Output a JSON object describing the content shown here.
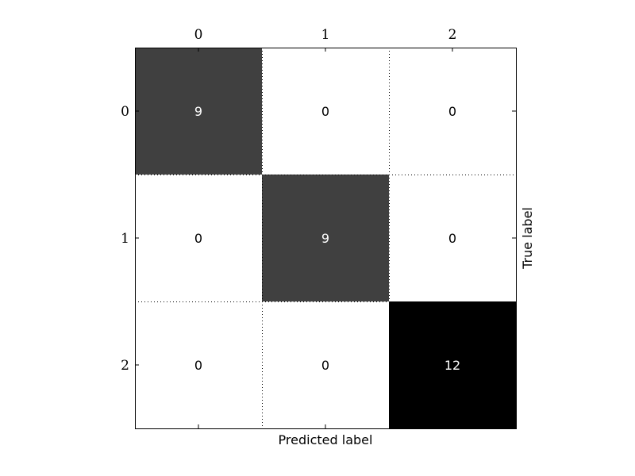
{
  "chart_data": {
    "type": "heatmap",
    "title": "",
    "xlabel": "Predicted label",
    "ylabel": "True label",
    "x_categories": [
      "0",
      "1",
      "2"
    ],
    "y_categories": [
      "0",
      "1",
      "2"
    ],
    "values": [
      [
        9,
        0,
        0
      ],
      [
        0,
        9,
        0
      ],
      [
        0,
        0,
        12
      ]
    ],
    "colormap": "gray_r",
    "value_range": [
      0,
      12
    ],
    "grid": true,
    "x_tick_position": "top",
    "ylabel_position": "right"
  }
}
